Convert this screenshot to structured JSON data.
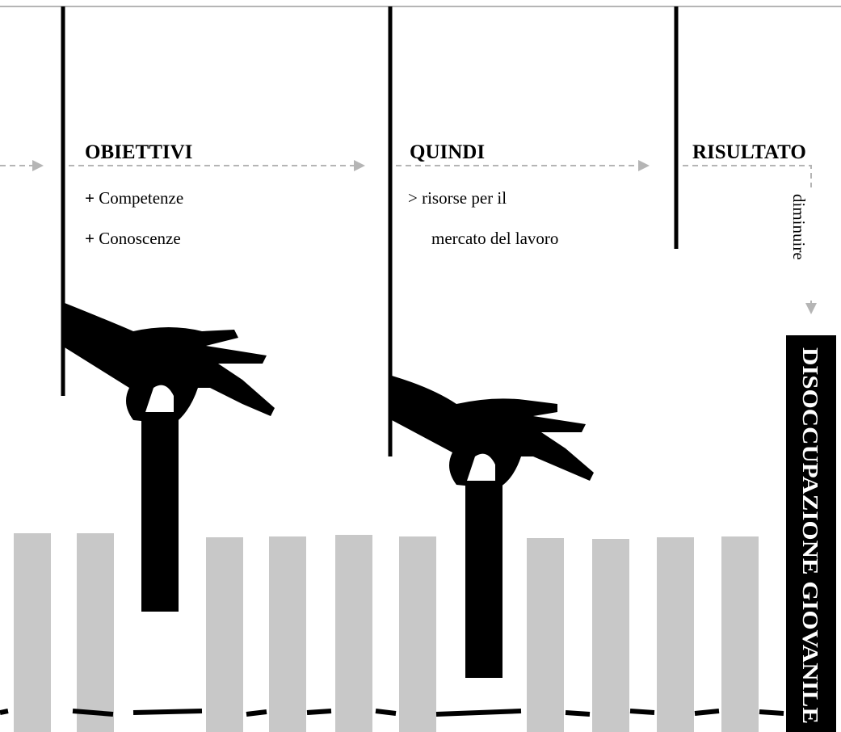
{
  "steps": [
    {
      "title": "OBIETTIVI",
      "items": [
        {
          "marker": "+",
          "text": "Competenze"
        },
        {
          "marker": "+",
          "text": "Conoscenze"
        }
      ]
    },
    {
      "title": "QUINDI",
      "items": [
        {
          "marker": ">",
          "text": "risorse per il"
        },
        {
          "text": "mercato del lavoro"
        }
      ]
    },
    {
      "title": "RISULTATO",
      "note": "diminuire"
    }
  ],
  "result": "DISOCCUPAZIONE GIOVANILE"
}
